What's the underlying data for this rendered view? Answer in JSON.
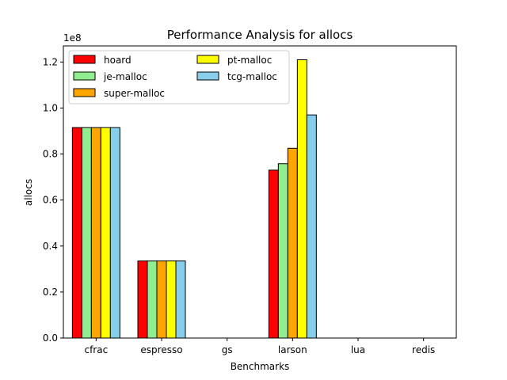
{
  "chart_data": {
    "type": "bar",
    "title": "Performance Analysis for allocs",
    "xlabel": "Benchmarks",
    "ylabel": "allocs",
    "y_scale_label": "1e8",
    "y_scale": 100000000,
    "ylim": [
      0,
      127000000
    ],
    "yticks": [
      0,
      20000000,
      40000000,
      60000000,
      80000000,
      100000000,
      120000000
    ],
    "ytick_labels": [
      "0.0",
      "0.2",
      "0.4",
      "0.6",
      "0.8",
      "1.0",
      "1.2"
    ],
    "categories": [
      "cfrac",
      "espresso",
      "gs",
      "larson",
      "lua",
      "redis"
    ],
    "series": [
      {
        "name": "hoard",
        "color": "#ff0000",
        "values": [
          91500000,
          33500000,
          0,
          73000000,
          0,
          0
        ]
      },
      {
        "name": "je-malloc",
        "color": "#90ee90",
        "values": [
          91500000,
          33500000,
          0,
          75800000,
          0,
          0
        ]
      },
      {
        "name": "super-malloc",
        "color": "#ffa500",
        "values": [
          91500000,
          33500000,
          0,
          82500000,
          0,
          0
        ]
      },
      {
        "name": "pt-malloc",
        "color": "#ffff00",
        "values": [
          91500000,
          33500000,
          0,
          121000000,
          0,
          0
        ]
      },
      {
        "name": "tcg-malloc",
        "color": "#87ceeb",
        "values": [
          91500000,
          33500000,
          0,
          97000000,
          0,
          0
        ]
      }
    ],
    "legend": {
      "location": "upper-left",
      "columns": 2
    },
    "grid": false
  }
}
